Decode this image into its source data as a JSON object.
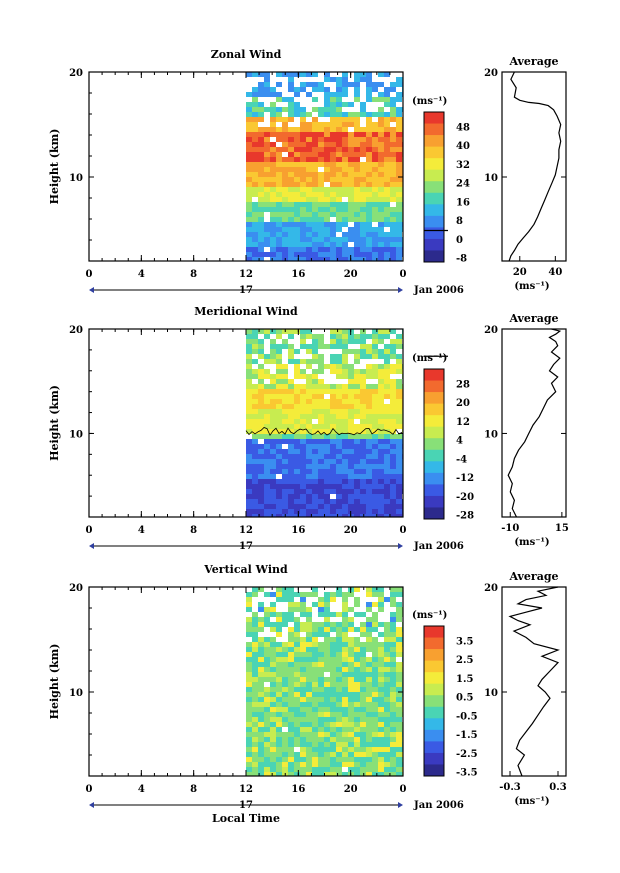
{
  "figure": {
    "shared_xlabel": "Local Time",
    "date_label": "Jan 2006",
    "day_label": "17"
  },
  "chart_data": [
    {
      "type": "heatmap",
      "title": "Zonal Wind",
      "ylabel": "Height (km)",
      "xticks": [
        "0",
        "4",
        "8",
        "12",
        "16",
        "20",
        "0"
      ],
      "yticks": [
        "10",
        "20"
      ],
      "ylim": [
        2,
        20
      ],
      "data_start_hour": 12,
      "colorbar_unit": "(ms⁻¹)",
      "colorbar_labels": [
        "48",
        "40",
        "32",
        "24",
        "16",
        "8",
        "0",
        "-8"
      ],
      "colorbar_colors": [
        "#e8382c",
        "#f26a2e",
        "#f8a030",
        "#fac832",
        "#f4ec3a",
        "#c8ec50",
        "#88e078",
        "#4ad4b4",
        "#34b8e8",
        "#3a8ef0",
        "#3a5ae4",
        "#3a3ac0",
        "#2c2a8c"
      ],
      "contour_at": "0",
      "profile": {
        "title": "Average",
        "xticks": [
          "20",
          "40"
        ],
        "xlabel": "(ms⁻¹)",
        "yticks": [
          "10",
          "20"
        ],
        "xlim": [
          10,
          46
        ],
        "x": [
          14,
          15,
          17,
          19,
          22,
          25,
          28,
          30,
          32,
          34,
          36,
          38,
          40,
          41,
          42,
          42,
          43,
          42,
          43,
          41,
          39,
          36,
          31,
          25,
          20,
          17,
          18,
          15,
          17
        ],
        "y": [
          2.0,
          2.5,
          3.0,
          3.6,
          4.2,
          4.8,
          5.5,
          6.2,
          7.0,
          7.8,
          8.6,
          9.4,
          10.2,
          11.0,
          11.8,
          12.6,
          13.4,
          14.2,
          15.0,
          15.8,
          16.4,
          16.8,
          17.0,
          17.1,
          17.3,
          17.6,
          18.5,
          19.3,
          20.0
        ]
      }
    },
    {
      "type": "heatmap",
      "title": "Meridional Wind",
      "ylabel": "Height (km)",
      "xticks": [
        "0",
        "4",
        "8",
        "12",
        "16",
        "20",
        "0"
      ],
      "yticks": [
        "10",
        "20"
      ],
      "ylim": [
        2,
        20
      ],
      "data_start_hour": 12,
      "colorbar_unit": "(ms⁻¹)",
      "colorbar_labels": [
        "28",
        "20",
        "12",
        "4",
        "-4",
        "-12",
        "-20",
        "-28"
      ],
      "colorbar_colors": [
        "#e8382c",
        "#f26a2e",
        "#f8a030",
        "#fac832",
        "#f4ec3a",
        "#c8ec50",
        "#88e078",
        "#4ad4b4",
        "#34b8e8",
        "#3a8ef0",
        "#3a5ae4",
        "#3a3ac0",
        "#2c2a8c"
      ],
      "contour_at": "0",
      "profile": {
        "title": "Average",
        "xticks": [
          "-10",
          "15"
        ],
        "xlabel": "(ms⁻¹)",
        "yticks": [
          "10",
          "20"
        ],
        "xlim": [
          -14,
          17
        ],
        "x": [
          -7,
          -9,
          -8,
          -10,
          -9,
          -11,
          -9,
          -8,
          -6,
          -3,
          -1,
          1,
          4,
          6,
          8,
          12,
          10,
          13,
          9,
          11,
          14,
          10,
          13,
          12,
          9,
          12,
          14,
          10
        ],
        "y": [
          2.0,
          2.8,
          3.6,
          4.4,
          5.2,
          6.0,
          6.8,
          7.6,
          8.4,
          9.2,
          10.0,
          10.8,
          11.6,
          12.4,
          13.2,
          14.0,
          14.8,
          15.4,
          16.0,
          16.6,
          17.2,
          17.8,
          18.4,
          18.8,
          19.2,
          19.5,
          19.8,
          20.0
        ]
      }
    },
    {
      "type": "heatmap",
      "title": "Vertical Wind",
      "ylabel": "Height (km)",
      "xticks": [
        "0",
        "4",
        "8",
        "12",
        "16",
        "20",
        "0"
      ],
      "yticks": [
        "10",
        "20"
      ],
      "ylim": [
        2,
        20
      ],
      "data_start_hour": 12,
      "colorbar_unit": "(ms⁻¹)",
      "colorbar_labels": [
        "3.5",
        "2.5",
        "1.5",
        "0.5",
        "-0.5",
        "-1.5",
        "-2.5",
        "-3.5"
      ],
      "colorbar_colors": [
        "#e8382c",
        "#f26a2e",
        "#f8a030",
        "#fac832",
        "#f4ec3a",
        "#c8ec50",
        "#88e078",
        "#4ad4b4",
        "#34b8e8",
        "#3a8ef0",
        "#3a5ae4",
        "#3a3ac0",
        "#2c2a8c"
      ],
      "profile": {
        "title": "Average",
        "xticks": [
          "-0.3",
          "0.3"
        ],
        "xlabel": "(ms⁻¹)",
        "yticks": [
          "10",
          "20"
        ],
        "xlim": [
          -0.4,
          0.4
        ],
        "x": [
          -0.15,
          -0.2,
          -0.12,
          -0.22,
          -0.18,
          -0.1,
          -0.02,
          0.05,
          0.12,
          0.2,
          0.14,
          0.05,
          0.1,
          0.2,
          0.3,
          0.1,
          0.3,
          0.0,
          -0.1,
          -0.25,
          -0.05,
          -0.2,
          -0.3,
          -0.1,
          0.1,
          -0.2,
          -0.1,
          0.15,
          0.05,
          0.3
        ],
        "y": [
          2.0,
          3.0,
          4.0,
          4.6,
          5.4,
          6.2,
          7.0,
          7.8,
          8.6,
          9.4,
          10.0,
          10.6,
          11.2,
          12.0,
          12.8,
          13.4,
          14.0,
          14.6,
          15.2,
          15.8,
          16.4,
          16.8,
          17.2,
          17.6,
          18.0,
          18.4,
          18.8,
          19.2,
          19.6,
          20.0
        ]
      }
    }
  ]
}
